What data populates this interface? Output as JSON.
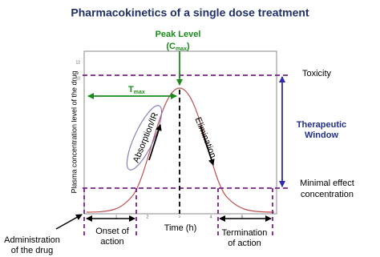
{
  "title": "Pharmacokinetics of a single dose treatment",
  "peak": {
    "label": "Peak Level",
    "open": "(C",
    "sub": "max",
    "close": ")"
  },
  "tmax": {
    "main": "T",
    "sub": "max"
  },
  "absorption": "Absorption/IR",
  "elimination": "Elimination",
  "toxicity": "Toxicity",
  "therapeutic_window": [
    "Therapeutic",
    "Window"
  ],
  "minimal_effect": [
    "Minimal effect",
    "concentration"
  ],
  "y_axis_label": "Plasma concentration level of the drug",
  "x_axis_label": "Time (h)",
  "y_ticks": [
    "12",
    "10"
  ],
  "x_ticks": [
    "1",
    "2",
    ">",
    "4",
    "6"
  ],
  "onset": [
    "Onset of",
    "action"
  ],
  "termination": [
    "Termination",
    "of action"
  ],
  "administration": [
    "Administration",
    "of the drug"
  ]
}
